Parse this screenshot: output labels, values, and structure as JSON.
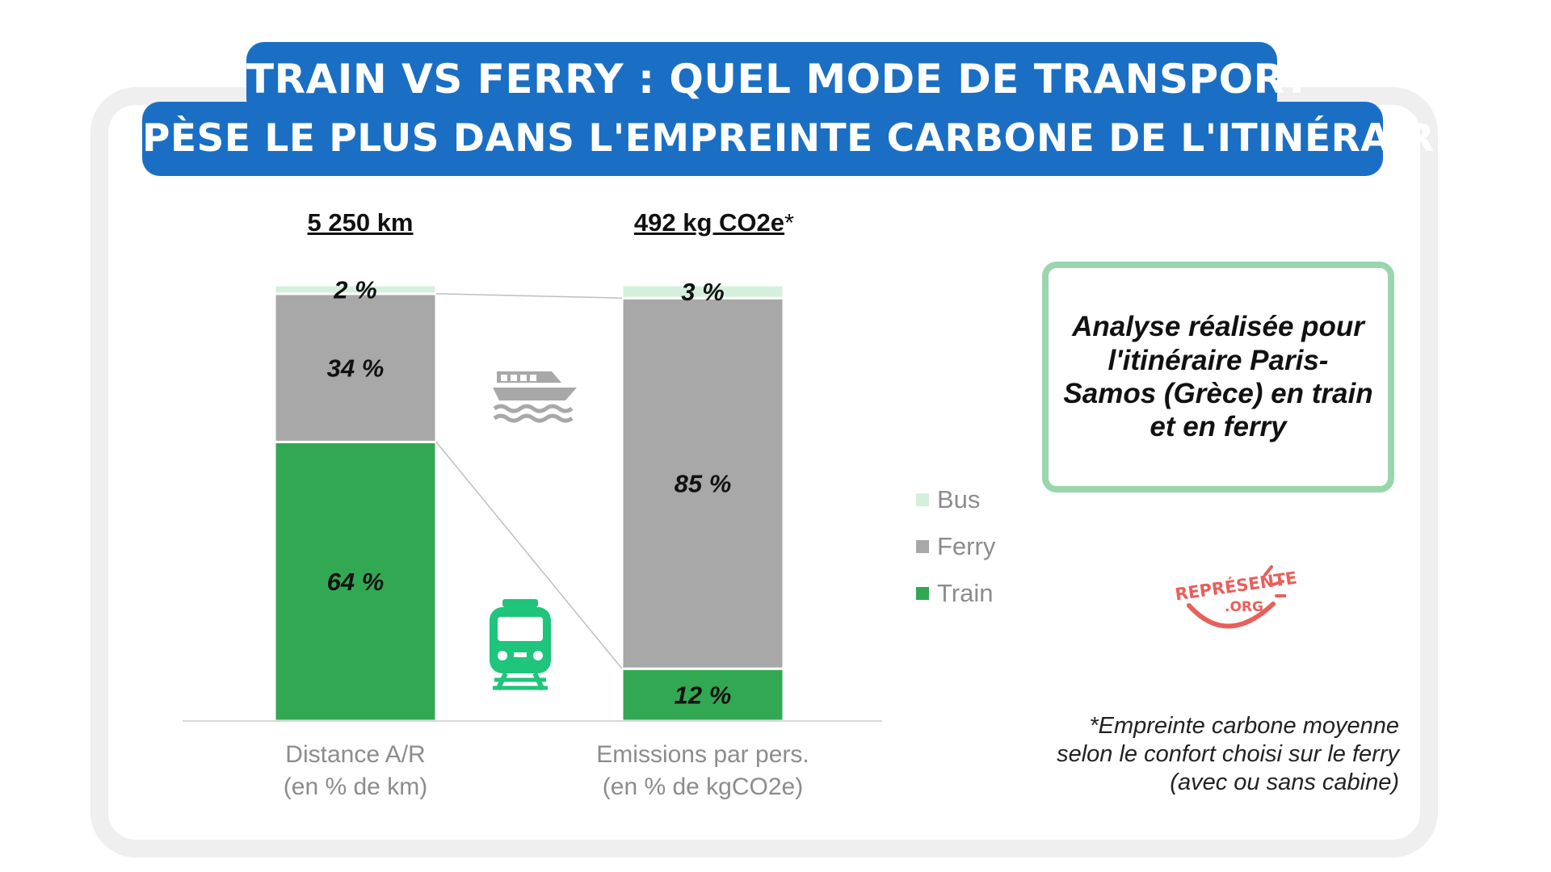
{
  "title": {
    "line1": "TRAIN VS FERRY : QUEL MODE DE TRANSPORT",
    "line2": "PÈSE LE PLUS DANS L'EMPREINTE CARBONE DE L'ITINÉRAIRE ?"
  },
  "headers": {
    "distance": "5 250 km",
    "emissions": "492 kg CO2e",
    "emissions_star": "*"
  },
  "note": "Analyse réalisée pour l'itinéraire Paris-Samos (Grèce) en train et en ferry",
  "footnote": "*Empreinte carbone moyenne selon le confort choisi sur le ferry (avec ou sans cabine)",
  "logo": {
    "line1": "REPRÉSENTE",
    "line2": ".ORG"
  },
  "colors": {
    "title_bg": "#1a6fc4",
    "bus": "#d4f0dc",
    "ferry": "#a8a8a8",
    "train": "#33a853",
    "note_border": "#9ad6ad",
    "logo": "#e8605b"
  },
  "icons": {
    "ferry": "ferry-icon",
    "train": "train-icon"
  },
  "chart_data": {
    "type": "bar",
    "stacked": true,
    "categories": [
      "Distance A/R\n(en % de km)",
      "Emissions par pers.\n(en % de kgCO2e)"
    ],
    "series": [
      {
        "name": "Train",
        "values": [
          64,
          12
        ],
        "labels": [
          "64 %",
          "12 %"
        ],
        "color": "#33a853"
      },
      {
        "name": "Ferry",
        "values": [
          34,
          85
        ],
        "labels": [
          "34 %",
          "85 %"
        ],
        "color": "#a8a8a8"
      },
      {
        "name": "Bus",
        "values": [
          2,
          3
        ],
        "labels": [
          "2 %",
          "3 %"
        ],
        "color": "#d4f0dc"
      }
    ],
    "legend_order": [
      "Bus",
      "Ferry",
      "Train"
    ],
    "legend_position": "right",
    "ylim": [
      0,
      100
    ],
    "grid": false
  }
}
